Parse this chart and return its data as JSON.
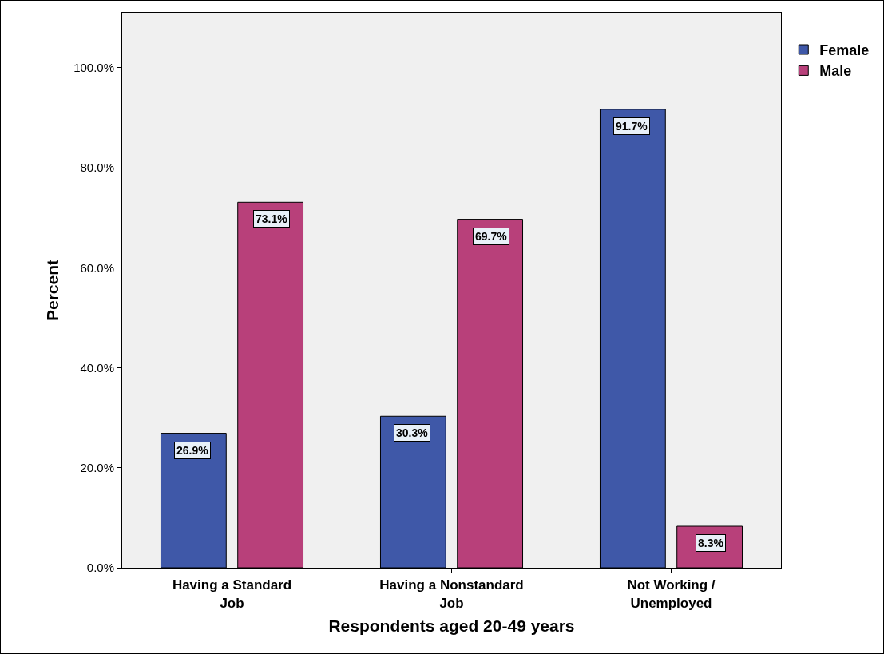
{
  "chart_data": {
    "type": "bar",
    "xlabel": "Respondents aged 20-49 years",
    "ylabel": "Percent",
    "categories": [
      "Having a Standard\nJob",
      "Having a Nonstandard\nJob",
      "Not Working /\nUnemployed"
    ],
    "series": [
      {
        "name": "Female",
        "color": "#3f58a8",
        "values": [
          26.9,
          30.3,
          91.7
        ],
        "value_labels": [
          "26.9%",
          "30.3%",
          "91.7%"
        ]
      },
      {
        "name": "Male",
        "color": "#b8407a",
        "values": [
          73.1,
          69.7,
          8.3
        ],
        "value_labels": [
          "73.1%",
          "69.7%",
          "8.3%"
        ]
      }
    ],
    "ylim": [
      0,
      111
    ],
    "yticks": [
      {
        "value": 0,
        "label": "0.0%"
      },
      {
        "value": 20,
        "label": "20.0%"
      },
      {
        "value": 40,
        "label": "40.0%"
      },
      {
        "value": 60,
        "label": "60.0%"
      },
      {
        "value": 80,
        "label": "80.0%"
      },
      {
        "value": 100,
        "label": "100.0%"
      }
    ],
    "grid": false,
    "legend": "top right"
  }
}
